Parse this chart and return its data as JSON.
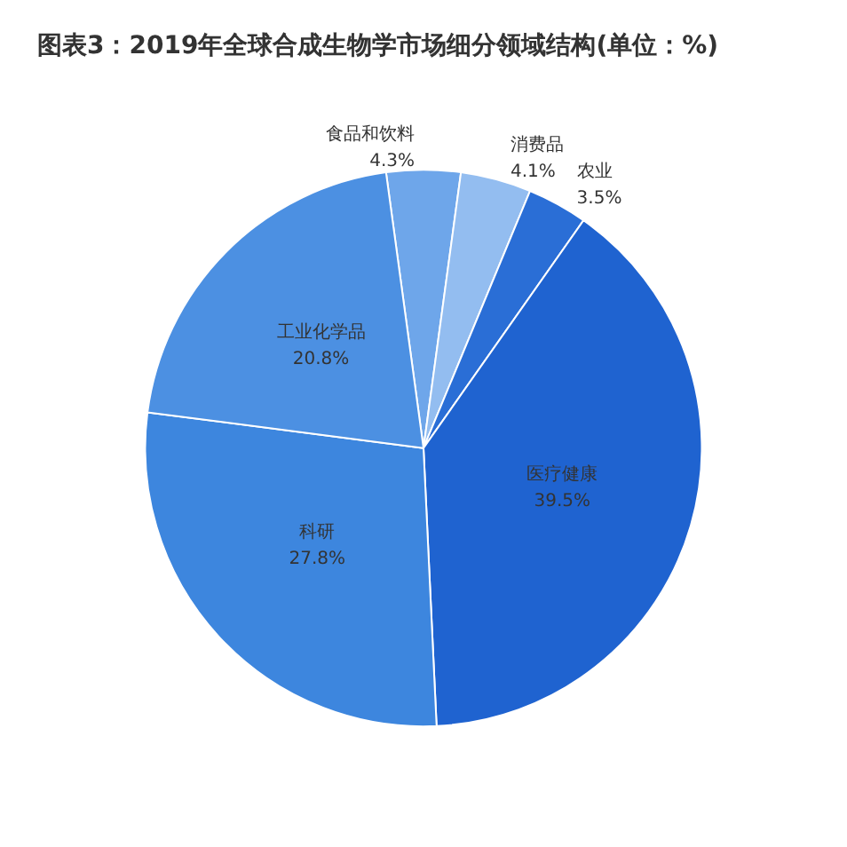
{
  "chart_data": {
    "type": "pie",
    "title": "图表3：2019年全球合成生物学市场细分领域结构(单位：%)",
    "categories": [
      "食品和饮料",
      "消费品",
      "农业",
      "医疗健康",
      "科研",
      "工业化学品"
    ],
    "values": [
      4.3,
      4.1,
      3.5,
      39.5,
      27.8,
      20.8
    ],
    "colors": [
      "#6ea6ea",
      "#93bdf0",
      "#2a6ed6",
      "#1f63d0",
      "#3d86de",
      "#4c90e2"
    ],
    "value_labels": [
      "4.3%",
      "4.1%",
      "3.5%",
      "39.5%",
      "27.8%",
      "20.8%"
    ],
    "legend": false
  }
}
